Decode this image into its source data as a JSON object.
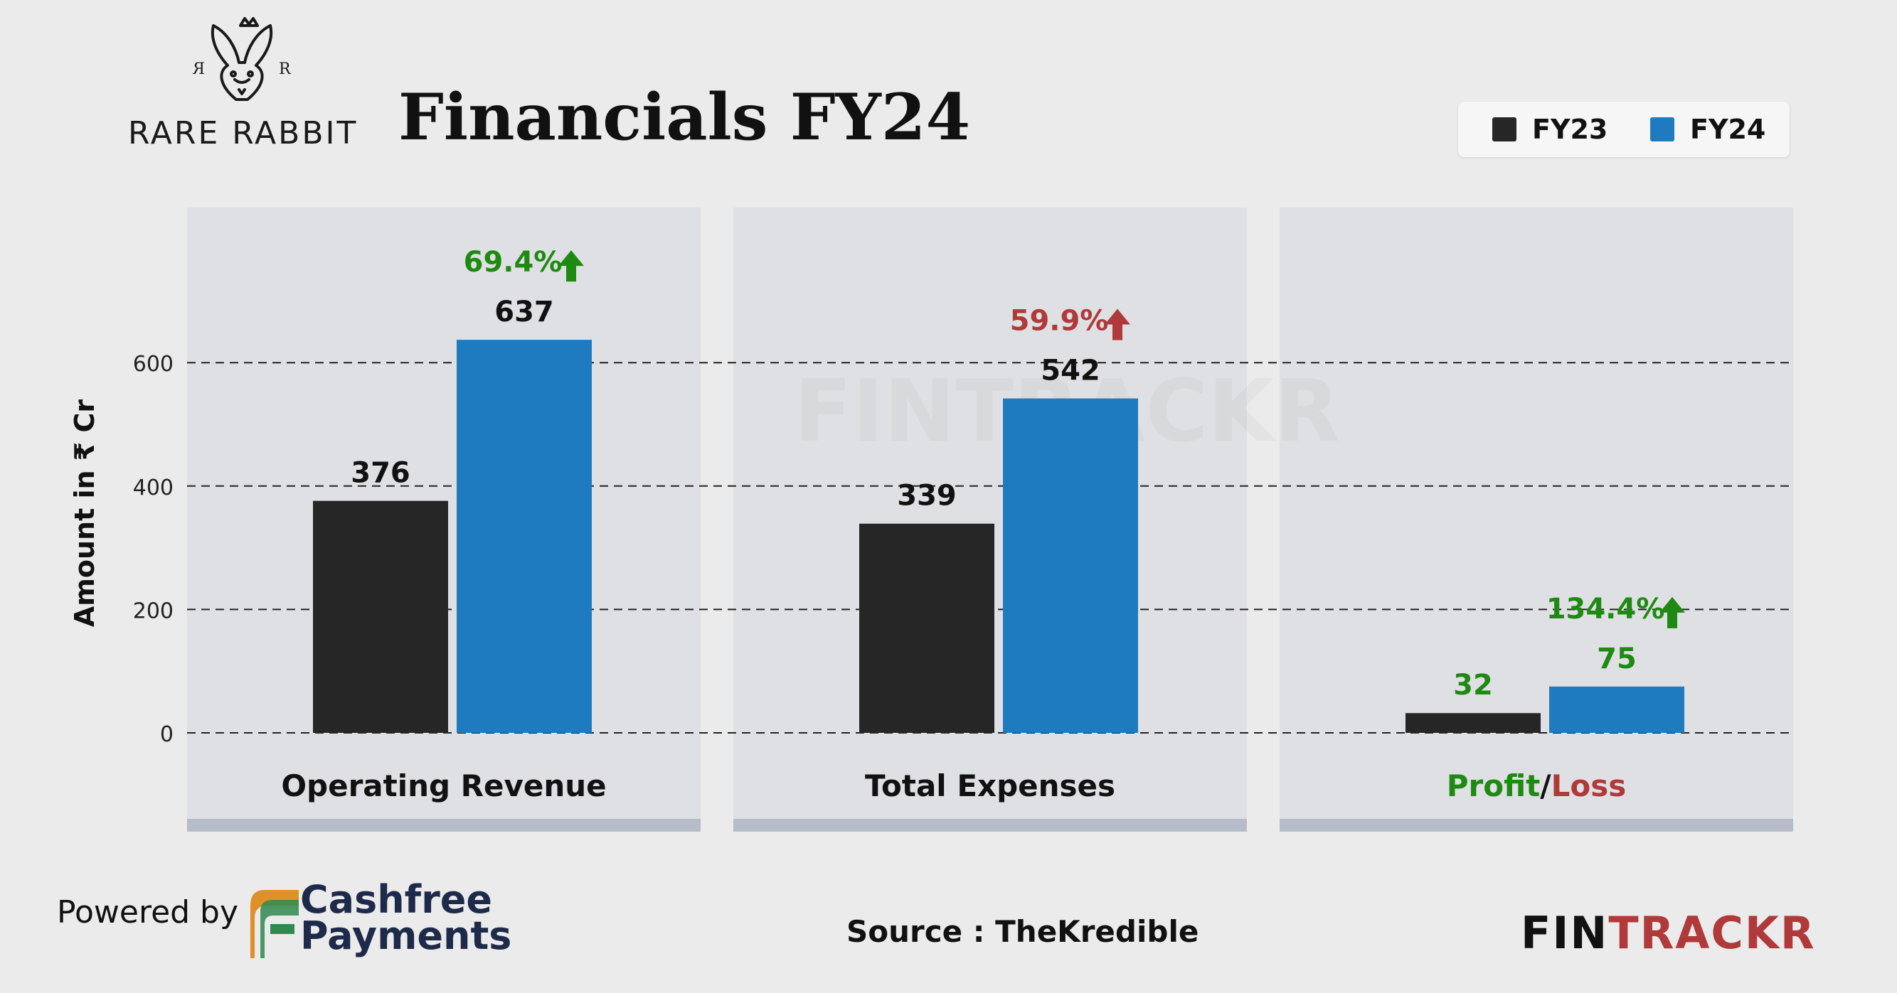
{
  "brand": {
    "name": "RARE RABBIT",
    "monogram_letter": "R"
  },
  "title": "Financials FY24",
  "legend": [
    {
      "label": "FY23",
      "color": "#262626"
    },
    {
      "label": "FY24",
      "color": "#1f7bbf"
    }
  ],
  "chart_data": {
    "type": "bar",
    "ylabel": "Amount in ₹ Cr",
    "ylim": [
      0,
      790
    ],
    "yticks": [
      0,
      200,
      400,
      600
    ],
    "grid": "dashed horizontal",
    "legend_position": "top-right",
    "categories": [
      "Operating Revenue",
      "Total Expenses",
      "Profit/Loss"
    ],
    "series": [
      {
        "name": "FY23",
        "values": [
          376,
          339,
          32
        ],
        "color": "#262626"
      },
      {
        "name": "FY24",
        "values": [
          637,
          542,
          75
        ],
        "color": "#1f7bbf"
      }
    ],
    "value_label_colors": [
      "#111111",
      "#111111",
      "#1e8a12"
    ],
    "growth": [
      {
        "label": "69.4%",
        "direction": "up",
        "color": "#1e8a12"
      },
      {
        "label": "59.9%",
        "direction": "up",
        "color": "#b0393a"
      },
      {
        "label": "134.4%",
        "direction": "up",
        "color": "#1e8a12"
      }
    ],
    "profit_loss_label": {
      "profit": "Profit",
      "sep": "/",
      "loss": "Loss",
      "profit_color": "#1e8a12",
      "loss_color": "#b0393a"
    }
  },
  "watermark": "FINTRACKR",
  "footer": {
    "powered_by": "Powered by",
    "cashfree_line1": "Cashfree",
    "cashfree_line2": "Payments",
    "source": "Source : TheKredible",
    "fintrackr_a": "FIN",
    "fintrackr_b": "TRACKR",
    "fintrackr_a_color": "#111111",
    "fintrackr_b_color": "#b0393a"
  }
}
